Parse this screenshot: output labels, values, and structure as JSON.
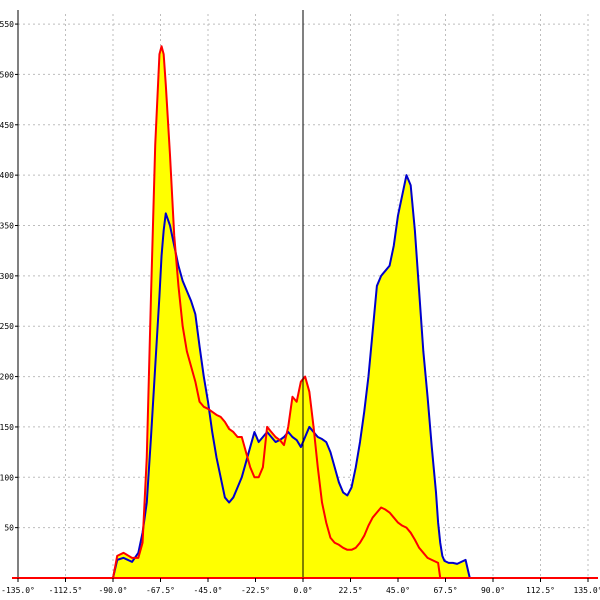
{
  "chart_data": {
    "type": "area",
    "title": "",
    "xlabel": "",
    "ylabel": "",
    "xlim": [
      -135,
      135
    ],
    "ylim": [
      0,
      560
    ],
    "grid": true,
    "x_ticks": [
      -135,
      -112.5,
      -90,
      -67.5,
      -45,
      -22.5,
      0,
      22.5,
      45,
      67.5,
      90,
      112.5,
      135
    ],
    "x_tick_labels": [
      "-135.0°",
      "-112.5°",
      "-90.0°",
      "-67.5°",
      "-45.0°",
      "-22.5°",
      "0.0°",
      "22.5°",
      "45.0°",
      "67.5°",
      "90.0°",
      "112.5°",
      "135.0°"
    ],
    "y_ticks": [
      50,
      100,
      150,
      200,
      250,
      300,
      350,
      400,
      450,
      500,
      550
    ],
    "y_tick_labels": [
      "50",
      "100",
      "150",
      "200",
      "250",
      "300",
      "350",
      "400",
      "450",
      "500",
      "550"
    ],
    "colors": {
      "fill": "#ffff00",
      "blue_series": "#0000cc",
      "red_series": "#ff0000",
      "axis": "#000000",
      "grid": "#bdbdbd"
    },
    "series": [
      {
        "color": "#0000cc",
        "x": [
          -135,
          -90,
          -88,
          -85,
          -81,
          -78,
          -76,
          -74,
          -72,
          -70,
          -68,
          -67,
          -66,
          -65,
          -63,
          -61,
          -59,
          -57,
          -55,
          -53,
          -51,
          -49,
          -47,
          -45,
          -43,
          -41,
          -39,
          -37,
          -35,
          -33,
          -31,
          -29,
          -27,
          -25,
          -23,
          -21,
          -19,
          -17,
          -15,
          -13,
          -11,
          -9,
          -7,
          -5,
          -3,
          -1,
          1,
          3,
          5,
          7,
          9,
          11,
          13,
          15,
          17,
          19,
          21,
          23,
          25,
          27,
          29,
          31,
          33,
          35,
          37,
          39,
          41,
          43,
          45,
          47,
          49,
          51,
          53,
          55,
          57,
          59,
          61,
          63,
          64,
          65,
          66,
          67,
          68,
          69,
          71,
          73,
          75,
          77,
          79,
          81,
          83,
          85,
          87,
          89,
          90,
          90.1,
          135
        ],
        "y": [
          0,
          0,
          18,
          20,
          16,
          25,
          45,
          75,
          140,
          210,
          280,
          320,
          345,
          362,
          350,
          330,
          310,
          295,
          285,
          275,
          262,
          230,
          200,
          175,
          145,
          120,
          100,
          80,
          75,
          80,
          90,
          100,
          115,
          130,
          145,
          135,
          140,
          145,
          140,
          135,
          137,
          140,
          145,
          140,
          137,
          130,
          140,
          150,
          145,
          140,
          138,
          135,
          125,
          110,
          95,
          85,
          82,
          90,
          110,
          135,
          165,
          200,
          245,
          290,
          300,
          305,
          310,
          330,
          360,
          380,
          400,
          390,
          345,
          285,
          225,
          180,
          130,
          85,
          55,
          35,
          22,
          17,
          16,
          15,
          15,
          14,
          16,
          18,
          0,
          0,
          0,
          0,
          0,
          0,
          0,
          0,
          0
        ],
        "__note__": ""
      },
      {
        "color": "#ff0000",
        "x": [
          -135,
          -90,
          -88,
          -85,
          -81,
          -78,
          -76,
          -74,
          -72,
          -70,
          -68,
          -67,
          -66,
          -65,
          -63,
          -61,
          -59,
          -57,
          -55,
          -53,
          -51,
          -49,
          -47,
          -45,
          -43,
          -41,
          -39,
          -37,
          -35,
          -33,
          -31,
          -29,
          -27,
          -25,
          -23,
          -21,
          -19,
          -17,
          -15,
          -13,
          -11,
          -9,
          -7,
          -5,
          -3,
          -1,
          1,
          3,
          5,
          7,
          9,
          11,
          13,
          15,
          17,
          19,
          21,
          23,
          25,
          27,
          29,
          31,
          33,
          35,
          37,
          39,
          41,
          43,
          45,
          47,
          49,
          51,
          53,
          55,
          57,
          59,
          61,
          63,
          64,
          65,
          66,
          67,
          68,
          69,
          71,
          73,
          75,
          77,
          79,
          81,
          83,
          85,
          87,
          89,
          90,
          90.1,
          135
        ],
        "y": [
          0,
          0,
          22,
          25,
          20,
          20,
          35,
          120,
          280,
          430,
          520,
          528,
          520,
          490,
          420,
          340,
          290,
          250,
          225,
          210,
          195,
          175,
          170,
          168,
          165,
          162,
          160,
          155,
          148,
          145,
          140,
          140,
          125,
          110,
          100,
          100,
          110,
          150,
          145,
          140,
          137,
          132,
          150,
          180,
          175,
          195,
          200,
          185,
          150,
          110,
          75,
          55,
          40,
          35,
          33,
          30,
          28,
          28,
          30,
          35,
          42,
          52,
          60,
          65,
          70,
          68,
          65,
          60,
          55,
          52,
          50,
          45,
          38,
          30,
          25,
          20,
          18,
          16,
          15,
          0,
          0,
          0,
          0,
          0,
          0,
          0,
          0,
          0,
          0,
          0,
          0,
          0,
          0,
          0,
          0,
          0,
          0
        ],
        "__note__": ""
      }
    ]
  }
}
